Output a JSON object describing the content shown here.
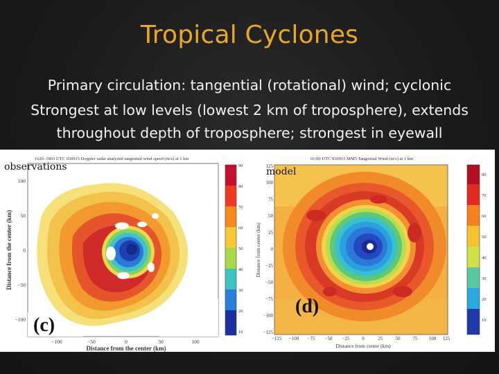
{
  "slide": {
    "title": "Tropical Cyclones",
    "lines": [
      "Primary circulation: tangential (rotational) wind; cyclonic",
      "Strongest at low levels (lowest 2 km of troposphere), extends",
      "throughout depth of troposphere; strongest in eyewall"
    ]
  },
  "panels": {
    "left": {
      "label": "observations",
      "header": "1626–1803 UTC 030915   Doppler radar analyzed tangential wind speed (m/s) at 1 km",
      "letter": "(c)",
      "xlabel": "Distance from the center (km)",
      "ylabel": "Distance from the center (km)",
      "x_ticks": [
        "−100",
        "−50",
        "0",
        "50",
        "100"
      ],
      "y_ticks": [
        "100",
        "50",
        "0",
        "−50",
        "−100"
      ],
      "colorbar_ticks": [
        "90",
        "80",
        "70",
        "60",
        "50",
        "40",
        "30",
        "20",
        "10"
      ]
    },
    "right": {
      "label": "model",
      "header": "01/00 UTC 030915   MM5 Tangential Wind (m/s) at 1 km",
      "letter": "(d)",
      "xlabel": "Distance from center (km)",
      "ylabel": "Distance from center (km)",
      "x_ticks": [
        "−125",
        "−100",
        "−75",
        "−50",
        "−25",
        "0",
        "25",
        "50",
        "75",
        "100",
        "125"
      ],
      "y_ticks": [
        "125",
        "100",
        "75",
        "50",
        "25",
        "0",
        "−25",
        "−50",
        "−75",
        "−100",
        "−125"
      ],
      "colorbar_ticks": [
        "80",
        "70",
        "60",
        "50",
        "40",
        "30",
        "20",
        "10"
      ]
    }
  },
  "colors": {
    "title": "#e8a824",
    "text": "#f2f2f2",
    "background": "#1b1b1b"
  }
}
